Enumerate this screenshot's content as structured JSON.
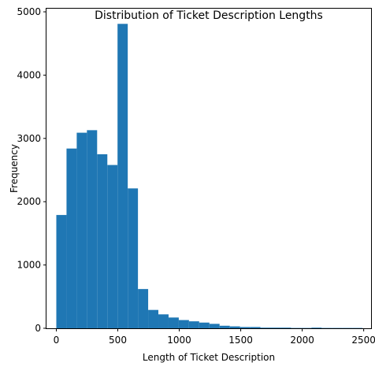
{
  "chart_data": {
    "type": "bar",
    "subtype": "histogram",
    "title": "Distribution of Ticket Description Lengths",
    "xlabel": "Length of Ticket Description",
    "ylabel": "Frequency",
    "xlim": [
      -80,
      2560
    ],
    "ylim": [
      0,
      5050
    ],
    "grid": false,
    "bar_color": "#1f77b4",
    "bin_edges": [
      0,
      83,
      166,
      249,
      332,
      415,
      498,
      581,
      664,
      747,
      830,
      913,
      996,
      1079,
      1162,
      1245,
      1328,
      1411,
      1494,
      1577,
      1660,
      1743,
      1826,
      1909,
      1992,
      2075,
      2158,
      2241,
      2324,
      2407,
      2490
    ],
    "values": [
      1790,
      2840,
      3090,
      3130,
      2750,
      2580,
      4810,
      2210,
      620,
      290,
      220,
      170,
      130,
      110,
      90,
      70,
      40,
      30,
      20,
      20,
      10,
      10,
      10,
      5,
      5,
      10,
      5,
      5,
      5,
      5
    ],
    "xticks": [
      0,
      500,
      1000,
      1500,
      2000,
      2500
    ],
    "xtick_labels": [
      "0",
      "500",
      "1000",
      "1500",
      "2000",
      "2500"
    ],
    "yticks": [
      0,
      1000,
      2000,
      3000,
      4000,
      5000
    ],
    "ytick_labels": [
      "0",
      "1000",
      "2000",
      "3000",
      "4000",
      "5000"
    ]
  }
}
